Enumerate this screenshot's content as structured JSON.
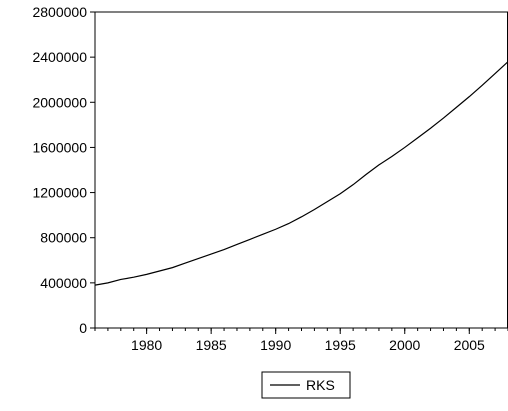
{
  "chart_data": {
    "type": "line",
    "title": "",
    "xlabel": "",
    "ylabel": "",
    "xlim": [
      1976,
      2008
    ],
    "ylim": [
      0,
      2800000
    ],
    "x_ticks": [
      1980,
      1985,
      1990,
      1995,
      2000,
      2005
    ],
    "x_tick_labels": [
      "1980",
      "1985",
      "1990",
      "1995",
      "2000",
      "2005"
    ],
    "y_ticks": [
      0,
      400000,
      800000,
      1200000,
      1600000,
      2000000,
      2400000,
      2800000
    ],
    "y_tick_labels": [
      "0",
      "400000",
      "800000",
      "1200000",
      "1600000",
      "2000000",
      "2400000",
      "2800000"
    ],
    "grid": false,
    "legend": {
      "position": "bottom-center"
    },
    "series": [
      {
        "name": "RKS",
        "color": "#000000",
        "x": [
          1976,
          1977,
          1978,
          1979,
          1980,
          1981,
          1982,
          1983,
          1984,
          1985,
          1986,
          1987,
          1988,
          1989,
          1990,
          1991,
          1992,
          1993,
          1994,
          1995,
          1996,
          1997,
          1998,
          1999,
          2000,
          2001,
          2002,
          2003,
          2004,
          2005,
          2006,
          2007,
          2008
        ],
        "values": [
          380000,
          400000,
          430000,
          450000,
          475000,
          505000,
          535000,
          575000,
          615000,
          655000,
          695000,
          740000,
          785000,
          830000,
          875000,
          925000,
          985000,
          1050000,
          1120000,
          1190000,
          1270000,
          1360000,
          1445000,
          1520000,
          1600000,
          1685000,
          1770000,
          1860000,
          1955000,
          2050000,
          2150000,
          2255000,
          2360000
        ]
      }
    ]
  }
}
